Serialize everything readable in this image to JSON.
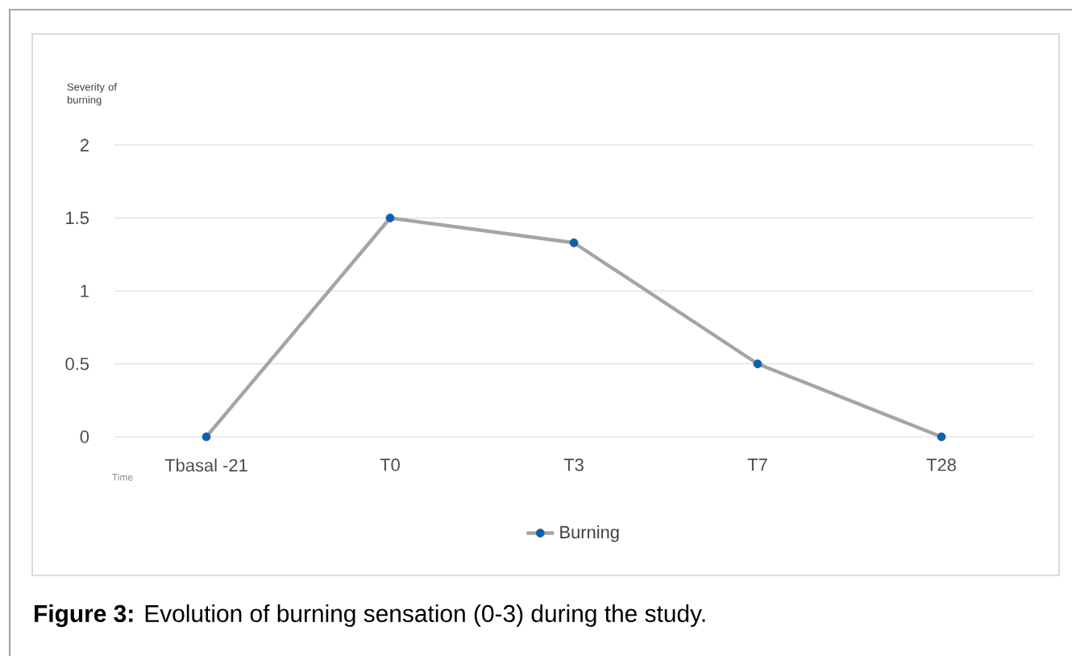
{
  "chart_data": {
    "type": "line",
    "xlabel": "Time",
    "ylabel": "Severity of burning",
    "categories": [
      "Tbasal -21",
      "T0",
      "T3",
      "T7",
      "T28"
    ],
    "series": [
      {
        "name": "Burning",
        "color": "#a5a5a5",
        "values": [
          0,
          1.5,
          1.33,
          0.5,
          0
        ]
      }
    ],
    "ylim": [
      0,
      2
    ],
    "yticks": [
      0,
      0.5,
      1,
      1.5,
      2
    ],
    "grid": "y",
    "legend": "bottom",
    "marker": "circle",
    "annotations": [
      "**Figure 3:** Evolution of burning sensation (0-3) during the study."
    ]
  }
}
